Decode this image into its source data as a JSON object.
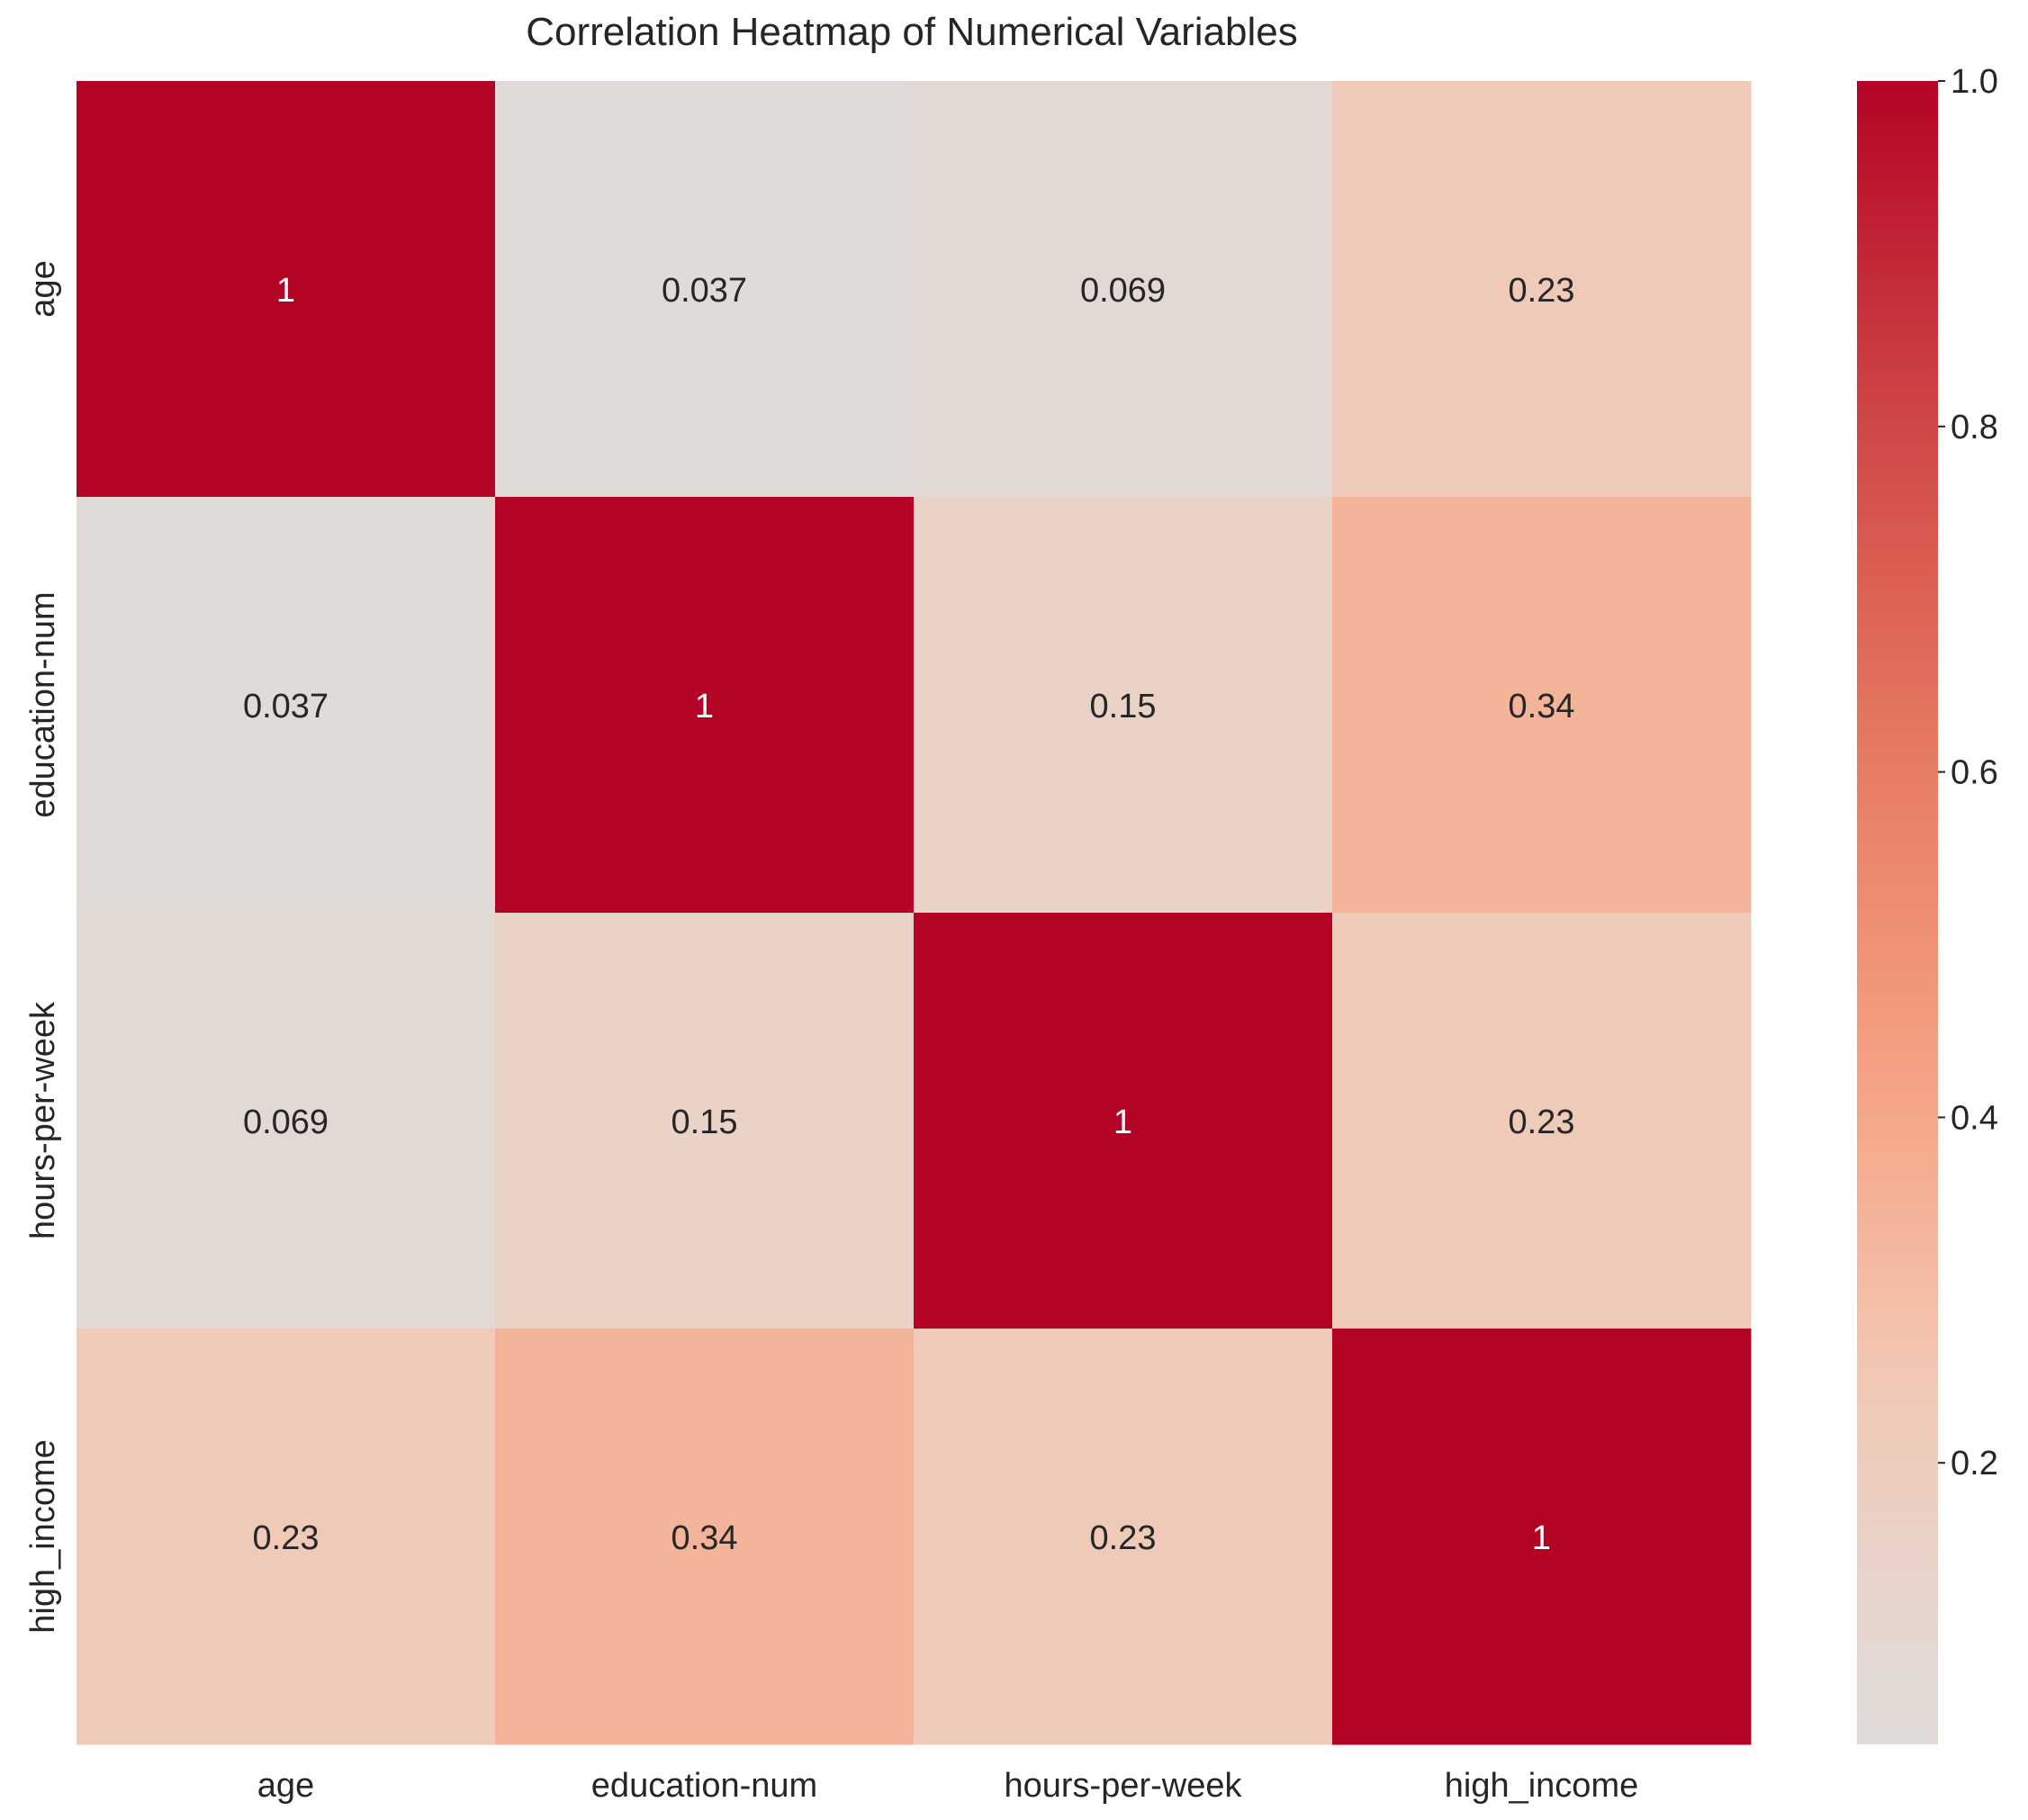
{
  "chart_data": {
    "type": "heatmap",
    "title": "Correlation Heatmap of Numerical Variables",
    "xlabel": "",
    "ylabel": "",
    "x_categories": [
      "age",
      "education-num",
      "hours-per-week",
      "high_income"
    ],
    "y_categories": [
      "age",
      "education-num",
      "hours-per-week",
      "high_income"
    ],
    "values": [
      [
        1.0,
        0.037,
        0.069,
        0.23
      ],
      [
        0.037,
        1.0,
        0.15,
        0.34
      ],
      [
        0.069,
        0.15,
        1.0,
        0.23
      ],
      [
        0.23,
        0.34,
        0.23,
        1.0
      ]
    ],
    "annotations": [
      [
        "1",
        "0.037",
        "0.069",
        "0.23"
      ],
      [
        "0.037",
        "1",
        "0.15",
        "0.34"
      ],
      [
        "0.069",
        "0.15",
        "1",
        "0.23"
      ],
      [
        "0.23",
        "0.34",
        "0.23",
        "1"
      ]
    ],
    "colormap": "coolwarm (centered at 0)",
    "colorbar": {
      "vmin": 0.037,
      "vmax": 1.0,
      "ticks": [
        0.2,
        0.4,
        0.6,
        0.8,
        1.0
      ],
      "tick_labels": [
        "0.2",
        "0.4",
        "0.6",
        "0.8",
        "1.0"
      ]
    },
    "grid": false,
    "legend": "colorbar-right"
  }
}
